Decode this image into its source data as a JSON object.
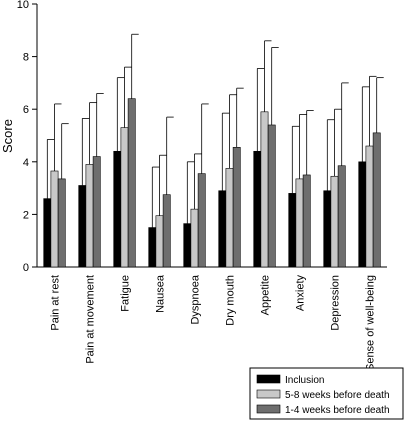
{
  "chart_data": {
    "type": "bar",
    "ylabel": "Score",
    "xlabel": "",
    "ylim": [
      0,
      10
    ],
    "yticks": [
      0,
      2,
      4,
      6,
      8,
      10
    ],
    "error_bars": "upper only",
    "legend_position": "bottom-right",
    "categories": [
      "Pain at rest",
      "Pain at movement",
      "Fatigue",
      "Nausea",
      "Dyspnoea",
      "Dry mouth",
      "Appetite",
      "Anxiety",
      "Depression",
      "Sense of well-being"
    ],
    "series": [
      {
        "name": "Inclusion",
        "color": "#000000",
        "values": [
          2.6,
          3.1,
          4.4,
          1.5,
          1.65,
          2.9,
          4.4,
          2.8,
          2.9,
          4.0
        ],
        "error_upper": [
          4.85,
          5.65,
          7.2,
          3.8,
          4.0,
          5.85,
          7.55,
          5.35,
          5.6,
          6.85
        ]
      },
      {
        "name": "5-8 weeks before death",
        "color": "#c8c8c8",
        "values": [
          3.65,
          3.9,
          5.3,
          1.95,
          2.2,
          3.75,
          5.9,
          3.35,
          3.45,
          4.6
        ],
        "error_upper": [
          6.2,
          6.25,
          7.6,
          4.25,
          4.3,
          6.55,
          8.6,
          5.8,
          6.0,
          7.25
        ]
      },
      {
        "name": "1-4 weeks before death",
        "color": "#6e6e6e",
        "values": [
          3.35,
          4.2,
          6.4,
          2.75,
          3.55,
          4.55,
          5.4,
          3.5,
          3.85,
          5.1
        ],
        "error_upper": [
          5.45,
          6.6,
          8.85,
          5.7,
          6.2,
          6.8,
          8.35,
          5.95,
          7.0,
          7.2
        ]
      }
    ]
  }
}
